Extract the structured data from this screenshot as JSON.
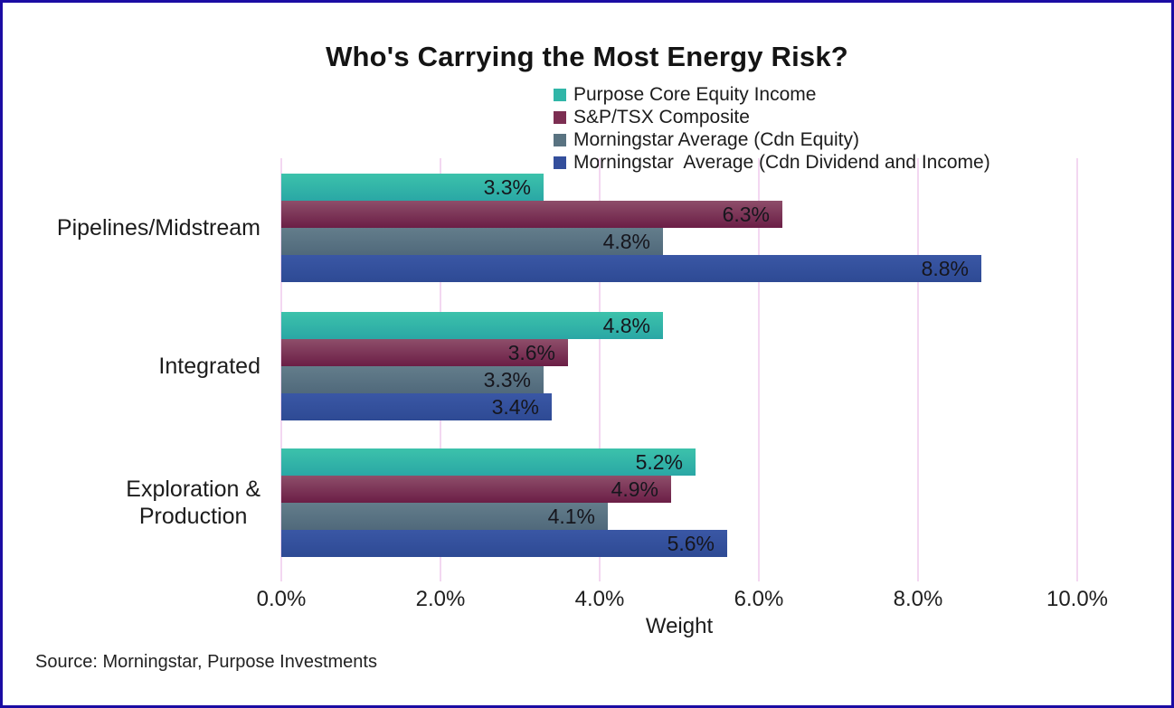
{
  "frame": {
    "background": "#ffffff",
    "border_color": "#1b0ca3"
  },
  "chart_data": {
    "type": "bar",
    "orientation": "horizontal",
    "title": "Who's Carrying the Most Energy Risk?",
    "categories": [
      "Pipelines/Midstream",
      "Integrated",
      "Exploration & Production"
    ],
    "category_lines": [
      [
        "Pipelines/Midstream"
      ],
      [
        "Integrated"
      ],
      [
        "Exploration &",
        "Production"
      ]
    ],
    "series": [
      {
        "name": "Purpose Core Equity Income",
        "color": "#31b6a8",
        "gradient": [
          "#3cc2ab",
          "#2aa7a5"
        ],
        "values": [
          3.3,
          4.8,
          5.2
        ]
      },
      {
        "name": "S&P/TSX Composite",
        "color": "#7c2e52",
        "gradient": [
          "#8e4e6a",
          "#6b1e46"
        ],
        "values": [
          6.3,
          3.6,
          4.9
        ]
      },
      {
        "name": "Morningstar Average (Cdn Equity)",
        "color": "#597381",
        "gradient": [
          "#637d8b",
          "#50697b"
        ],
        "values": [
          4.8,
          3.3,
          4.1
        ]
      },
      {
        "name": "Morningstar  Average (Cdn Dividend and Income)",
        "color": "#344f9c",
        "gradient": [
          "#3a57a5",
          "#2e4a94"
        ],
        "values": [
          8.8,
          3.4,
          5.6
        ]
      }
    ],
    "value_labels": [
      [
        "3.3%",
        "6.3%",
        "4.8%",
        "8.8%"
      ],
      [
        "4.8%",
        "3.6%",
        "3.3%",
        "3.4%"
      ],
      [
        "5.2%",
        "4.9%",
        "4.1%",
        "5.6%"
      ]
    ],
    "xlabel": "Weight",
    "xlim": [
      0,
      10
    ],
    "xtick_labels": [
      "0.0%",
      "2.0%",
      "4.0%",
      "6.0%",
      "8.0%",
      "10.0%"
    ],
    "grid": {
      "vertical": true,
      "color": "#f3d7f1"
    },
    "legend_position": "top-right",
    "value_label_color": "#16161d",
    "source_note": "Source: Morningstar, Purpose Investments"
  }
}
